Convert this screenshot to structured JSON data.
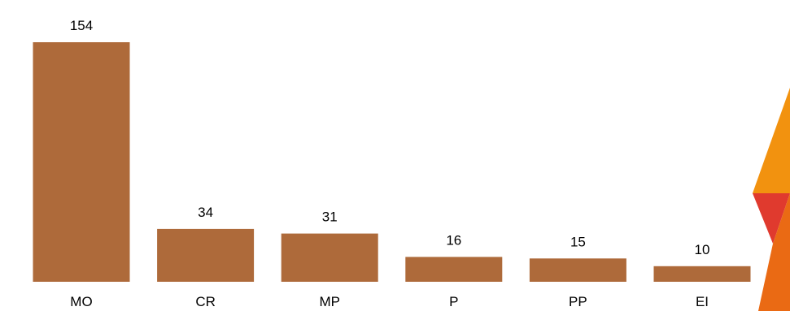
{
  "chart_data": {
    "type": "bar",
    "categories": [
      "MO",
      "CR",
      "MP",
      "P",
      "PP",
      "EI"
    ],
    "values": [
      154,
      34,
      31,
      16,
      15,
      10
    ],
    "title": "",
    "xlabel": "",
    "ylabel": "",
    "ylim": [
      0,
      154
    ],
    "grid": false,
    "legend": "none",
    "bar_color": "#ae6a3a",
    "data_labels": true
  },
  "decoration": {
    "colors": [
      "#f2920f",
      "#e03a2e",
      "#ea6a14"
    ]
  }
}
